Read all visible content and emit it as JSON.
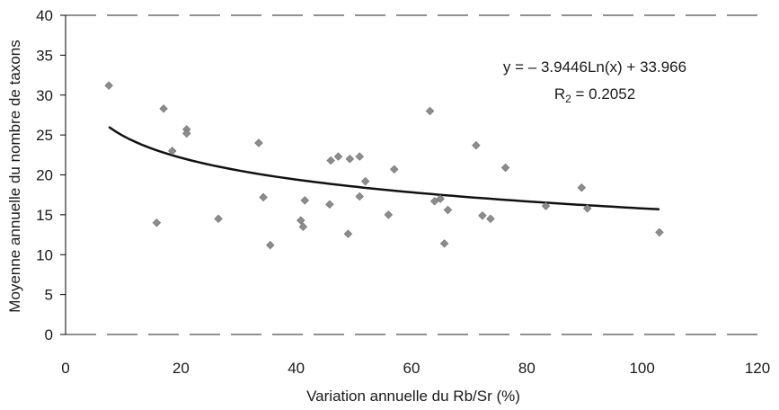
{
  "chart_data": {
    "type": "scatter",
    "xlabel": "Variation annuelle du Rb/Sr (%)",
    "ylabel": "Moyenne annuelle du nombre de taxons",
    "xlim": [
      0,
      120
    ],
    "ylim": [
      0,
      40
    ],
    "x_ticks": [
      "0",
      "20",
      "40",
      "60",
      "80",
      "100",
      "120"
    ],
    "y_ticks": [
      "0",
      "5",
      "10",
      "15",
      "20",
      "25",
      "30",
      "35",
      "40"
    ],
    "grid": "horizontal dashed",
    "legend": "none",
    "marker_color": "#8c8c8c",
    "trend_color": "#111111",
    "points": [
      {
        "x": 7.5,
        "y": 31.2
      },
      {
        "x": 15.8,
        "y": 14.0
      },
      {
        "x": 17.0,
        "y": 28.3
      },
      {
        "x": 18.5,
        "y": 23.0
      },
      {
        "x": 21.0,
        "y": 25.7
      },
      {
        "x": 21.0,
        "y": 25.2
      },
      {
        "x": 26.5,
        "y": 14.5
      },
      {
        "x": 33.5,
        "y": 24.0
      },
      {
        "x": 34.3,
        "y": 17.2
      },
      {
        "x": 35.5,
        "y": 11.2
      },
      {
        "x": 40.8,
        "y": 14.3
      },
      {
        "x": 41.2,
        "y": 13.5
      },
      {
        "x": 41.5,
        "y": 16.8
      },
      {
        "x": 46.0,
        "y": 21.8
      },
      {
        "x": 47.3,
        "y": 22.3
      },
      {
        "x": 45.8,
        "y": 16.3
      },
      {
        "x": 49.0,
        "y": 12.6
      },
      {
        "x": 49.3,
        "y": 22.0
      },
      {
        "x": 51.0,
        "y": 22.3
      },
      {
        "x": 51.0,
        "y": 17.3
      },
      {
        "x": 52.0,
        "y": 19.2
      },
      {
        "x": 56.0,
        "y": 15.0
      },
      {
        "x": 57.0,
        "y": 20.7
      },
      {
        "x": 63.2,
        "y": 28.0
      },
      {
        "x": 64.0,
        "y": 16.7
      },
      {
        "x": 65.0,
        "y": 17.0
      },
      {
        "x": 65.7,
        "y": 11.4
      },
      {
        "x": 66.3,
        "y": 15.6
      },
      {
        "x": 71.2,
        "y": 23.7
      },
      {
        "x": 72.3,
        "y": 14.9
      },
      {
        "x": 73.7,
        "y": 14.5
      },
      {
        "x": 76.3,
        "y": 20.9
      },
      {
        "x": 83.3,
        "y": 16.1
      },
      {
        "x": 89.5,
        "y": 18.4
      },
      {
        "x": 90.5,
        "y": 15.8
      },
      {
        "x": 103.0,
        "y": 12.8
      }
    ],
    "trendline": {
      "type": "logarithmic",
      "a": -3.9446,
      "b": 33.966,
      "x_range": [
        7.5,
        103
      ]
    },
    "equation_label": "y = – 3.9446Ln(x) + 33.966",
    "r2_label_main": "R",
    "r2_label_sub": "2",
    "r2_label_value": " = 0.2052"
  }
}
